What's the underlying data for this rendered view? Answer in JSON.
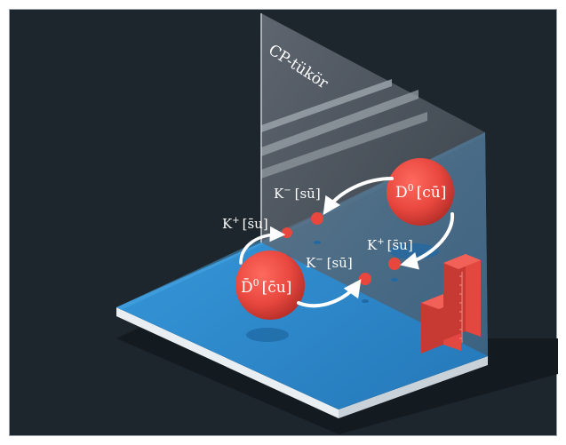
{
  "mirror": {
    "label": "CP-tükör"
  },
  "particles": {
    "d0": {
      "name": "D",
      "sup": "0",
      "quarks": "[cū]"
    },
    "d0bar": {
      "name": "D̄",
      "sup": "0",
      "quarks": "[c̄u]"
    },
    "kminus_top": {
      "name": "K",
      "sup": "−",
      "quarks": "[sū]"
    },
    "kplus_left": {
      "name": "K",
      "sup": "+",
      "quarks": "[s̄u]"
    },
    "kplus_right": {
      "name": "K",
      "sup": "+",
      "quarks": "[s̄u]"
    },
    "kminus_bottom": {
      "name": "K",
      "sup": "−",
      "quarks": "[sū]"
    }
  },
  "colors": {
    "background": "#1d262d",
    "floor": "#2f8fd0",
    "floor_edge": "#ffffff",
    "mirror": "#59606a",
    "particle": "#e8473e",
    "arrow": "#ffffff"
  },
  "icons": [
    "histogram-icon"
  ]
}
